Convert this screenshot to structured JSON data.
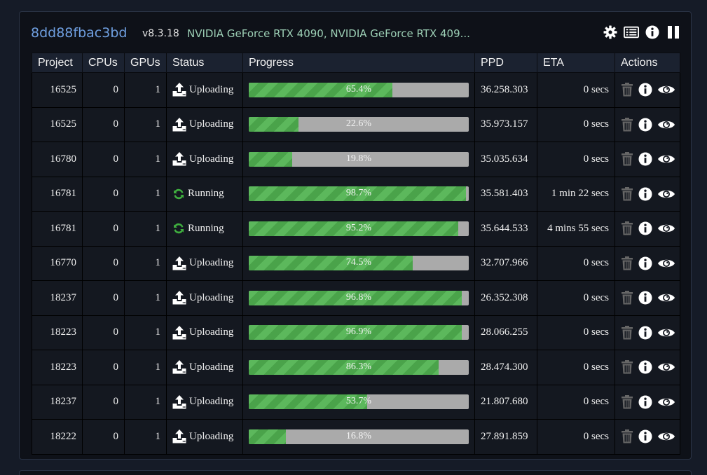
{
  "machine": {
    "id": "8dd88fbac3bd",
    "version": "v8.3.18",
    "gpus": "NVIDIA GeForce RTX 4090, NVIDIA GeForce RTX 409..."
  },
  "header_icons": [
    "gear-icon",
    "list-icon",
    "info-icon",
    "pause-icon"
  ],
  "columns": [
    "Project",
    "CPUs",
    "GPUs",
    "Status",
    "Progress",
    "PPD",
    "ETA",
    "Actions"
  ],
  "rows": [
    {
      "project": "16525",
      "cpus": "0",
      "gpus": "1",
      "status": "Uploading",
      "progress": 65.4,
      "progress_label": "65.4%",
      "ppd": "36.258.303",
      "eta": "0 secs"
    },
    {
      "project": "16525",
      "cpus": "0",
      "gpus": "1",
      "status": "Uploading",
      "progress": 22.6,
      "progress_label": "22.6%",
      "ppd": "35.973.157",
      "eta": "0 secs"
    },
    {
      "project": "16780",
      "cpus": "0",
      "gpus": "1",
      "status": "Uploading",
      "progress": 19.8,
      "progress_label": "19.8%",
      "ppd": "35.035.634",
      "eta": "0 secs"
    },
    {
      "project": "16781",
      "cpus": "0",
      "gpus": "1",
      "status": "Running",
      "progress": 98.7,
      "progress_label": "98.7%",
      "ppd": "35.581.403",
      "eta": "1 min 22 secs"
    },
    {
      "project": "16781",
      "cpus": "0",
      "gpus": "1",
      "status": "Running",
      "progress": 95.2,
      "progress_label": "95.2%",
      "ppd": "35.644.533",
      "eta": "4 mins 55 secs"
    },
    {
      "project": "16770",
      "cpus": "0",
      "gpus": "1",
      "status": "Uploading",
      "progress": 74.5,
      "progress_label": "74.5%",
      "ppd": "32.707.966",
      "eta": "0 secs"
    },
    {
      "project": "18237",
      "cpus": "0",
      "gpus": "1",
      "status": "Uploading",
      "progress": 96.8,
      "progress_label": "96.8%",
      "ppd": "26.352.308",
      "eta": "0 secs"
    },
    {
      "project": "18223",
      "cpus": "0",
      "gpus": "1",
      "status": "Uploading",
      "progress": 96.9,
      "progress_label": "96.9%",
      "ppd": "28.066.255",
      "eta": "0 secs"
    },
    {
      "project": "18223",
      "cpus": "0",
      "gpus": "1",
      "status": "Uploading",
      "progress": 86.3,
      "progress_label": "86.3%",
      "ppd": "28.474.300",
      "eta": "0 secs"
    },
    {
      "project": "18237",
      "cpus": "0",
      "gpus": "1",
      "status": "Uploading",
      "progress": 53.7,
      "progress_label": "53.7%",
      "ppd": "21.807.680",
      "eta": "0 secs"
    },
    {
      "project": "18222",
      "cpus": "0",
      "gpus": "1",
      "status": "Uploading",
      "progress": 16.8,
      "progress_label": "16.8%",
      "ppd": "27.891.859",
      "eta": "0 secs"
    }
  ],
  "row_action_icons": [
    "trash-icon",
    "info-icon",
    "eye-icon"
  ],
  "colors": {
    "accent": "#6f9fe0",
    "project": "#e98a2b",
    "progress_fill": "#5cb85c",
    "progress_track": "#aaaaaa",
    "running_icon": "#3fae3f"
  }
}
